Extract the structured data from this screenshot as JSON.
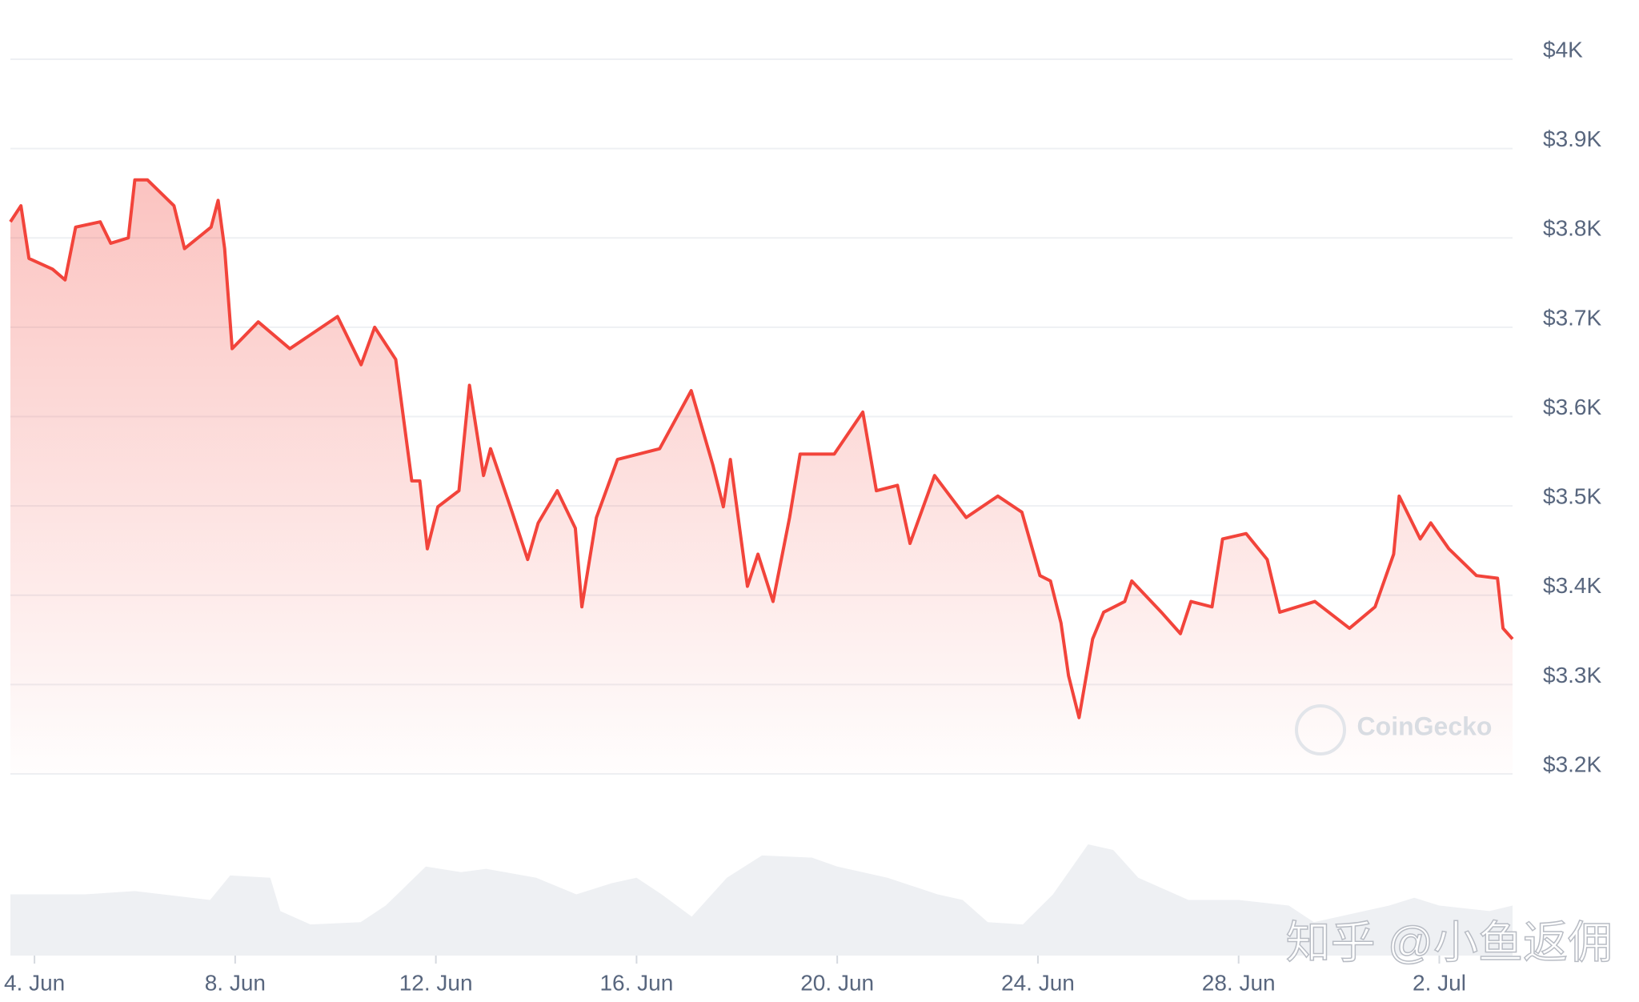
{
  "chart_data": {
    "type": "line",
    "series": [
      {
        "color": "#f2443b",
        "x": [
          3.52,
          3.73,
          3.89,
          4.36,
          4.61,
          4.82,
          5.31,
          5.52,
          5.87,
          6.0,
          6.25,
          6.78,
          6.99,
          7.52,
          7.66,
          7.79,
          7.94,
          8.46,
          9.09,
          10.04,
          10.51,
          10.78,
          11.2,
          11.52,
          11.68,
          11.83,
          12.04,
          12.46,
          12.67,
          12.95,
          13.09,
          13.52,
          13.83,
          14.04,
          14.42,
          14.78,
          14.91,
          15.2,
          15.62,
          16.46,
          17.09,
          17.52,
          17.73,
          17.87,
          18.21,
          18.42,
          18.72,
          19.05,
          19.26,
          19.94,
          20.51,
          20.78,
          21.2,
          21.45,
          21.94,
          22.57,
          23.2,
          23.68,
          24.04,
          24.25,
          24.46,
          24.61,
          24.82,
          25.09,
          25.31,
          25.73,
          25.87,
          26.46,
          26.84,
          27.05,
          27.47,
          27.68,
          28.15,
          28.57,
          28.82,
          29.52,
          30.21,
          30.72,
          31.09,
          31.2,
          31.62,
          31.83,
          32.19,
          32.74,
          33.16,
          33.27,
          33.46
        ],
        "values": [
          3818,
          3836,
          3777,
          3765,
          3753,
          3812,
          3818,
          3794,
          3800,
          3865,
          3865,
          3836,
          3788,
          3812,
          3842,
          3788,
          3676,
          3706,
          3676,
          3712,
          3658,
          3700,
          3664,
          3528,
          3528,
          3452,
          3499,
          3517,
          3635,
          3534,
          3564,
          3493,
          3440,
          3481,
          3517,
          3475,
          3387,
          3487,
          3552,
          3564,
          3629,
          3546,
          3499,
          3552,
          3410,
          3446,
          3393,
          3487,
          3558,
          3558,
          3605,
          3517,
          3523,
          3458,
          3534,
          3487,
          3511,
          3493,
          3422,
          3416,
          3369,
          3310,
          3263,
          3351,
          3381,
          3393,
          3416,
          3381,
          3357,
          3393,
          3387,
          3463,
          3469,
          3440,
          3381,
          3393,
          3363,
          3387,
          3446,
          3511,
          3463,
          3481,
          3452,
          3422,
          3419,
          3363,
          3351
        ]
      }
    ],
    "volume": {
      "color": "#eef0f3",
      "x": [
        3.52,
        5,
        6,
        7.5,
        7.9,
        8.7,
        8.9,
        9.5,
        10.5,
        11,
        11.8,
        12.5,
        13,
        14,
        14.8,
        15.5,
        16,
        16.5,
        17.1,
        17.8,
        18.5,
        19.5,
        20,
        21,
        22,
        22.5,
        23,
        23.7,
        24.3,
        25,
        25.5,
        26,
        27,
        28,
        29,
        29.5,
        30,
        31,
        31.5,
        32,
        33,
        33.46
      ],
      "values": [
        55,
        55,
        58,
        50,
        72,
        70,
        40,
        28,
        30,
        45,
        80,
        75,
        78,
        70,
        55,
        65,
        70,
        55,
        35,
        70,
        90,
        88,
        80,
        70,
        55,
        50,
        30,
        28,
        55,
        100,
        95,
        70,
        50,
        50,
        45,
        30,
        35,
        45,
        52,
        45,
        40,
        45
      ],
      "vlim": [
        0,
        100
      ]
    },
    "xlim": [
      3.52,
      33.46
    ],
    "xticks": [
      {
        "value": 4,
        "label": "4. Jun"
      },
      {
        "value": 8,
        "label": "8. Jun"
      },
      {
        "value": 12,
        "label": "12. Jun"
      },
      {
        "value": 16,
        "label": "16. Jun"
      },
      {
        "value": 20,
        "label": "20. Jun"
      },
      {
        "value": 24,
        "label": "24. Jun"
      },
      {
        "value": 28,
        "label": "28. Jun"
      },
      {
        "value": 32,
        "label": "2. Jul"
      }
    ],
    "ylim": [
      3200,
      4000
    ],
    "yticks": [
      {
        "value": 3200,
        "label": "$3.2K"
      },
      {
        "value": 3300,
        "label": "$3.3K"
      },
      {
        "value": 3400,
        "label": "$3.4K"
      },
      {
        "value": 3500,
        "label": "$3.5K"
      },
      {
        "value": 3600,
        "label": "$3.6K"
      },
      {
        "value": 3700,
        "label": "$3.7K"
      },
      {
        "value": 3800,
        "label": "$3.8K"
      },
      {
        "value": 3900,
        "label": "$3.9K"
      },
      {
        "value": 4000,
        "label": "$4K"
      }
    ],
    "grid": true,
    "annotations": [
      "CoinGecko",
      "知乎 @小鱼返佣"
    ]
  }
}
